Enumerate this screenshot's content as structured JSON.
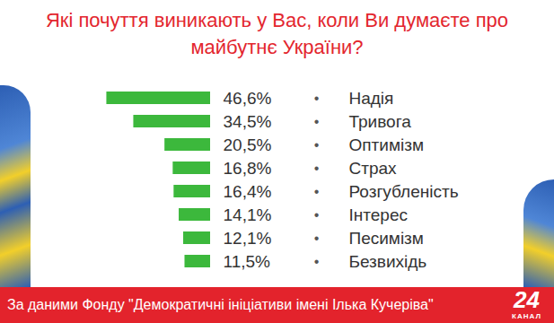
{
  "chart_data": {
    "type": "bar",
    "title": "Які почуття виникають у Вас, коли Ви думаєте про майбутнє України?",
    "categories": [
      "Надія",
      "Тривога",
      "Оптимізм",
      "Страх",
      "Розгубленість",
      "Інтерес",
      "Песимізм",
      "Безвихідь"
    ],
    "values": [
      46.6,
      34.5,
      20.5,
      16.8,
      16.4,
      14.1,
      12.1,
      11.5
    ],
    "value_labels": [
      "46,6%",
      "34,5%",
      "20,5%",
      "16,8%",
      "16,4%",
      "14,1%",
      "12,1%",
      "11,5%"
    ],
    "color": "#3cb83c",
    "orientation": "horizontal",
    "data_labels": true,
    "tick_labels": false,
    "grid": false,
    "xlim": [
      0,
      50
    ],
    "bullet": "•",
    "source": "За даними Фонду \"Демократичні ініціативи імені Ілька Кучеріва\"",
    "logo": "24",
    "logo_subtitle": "КАНАЛ"
  }
}
